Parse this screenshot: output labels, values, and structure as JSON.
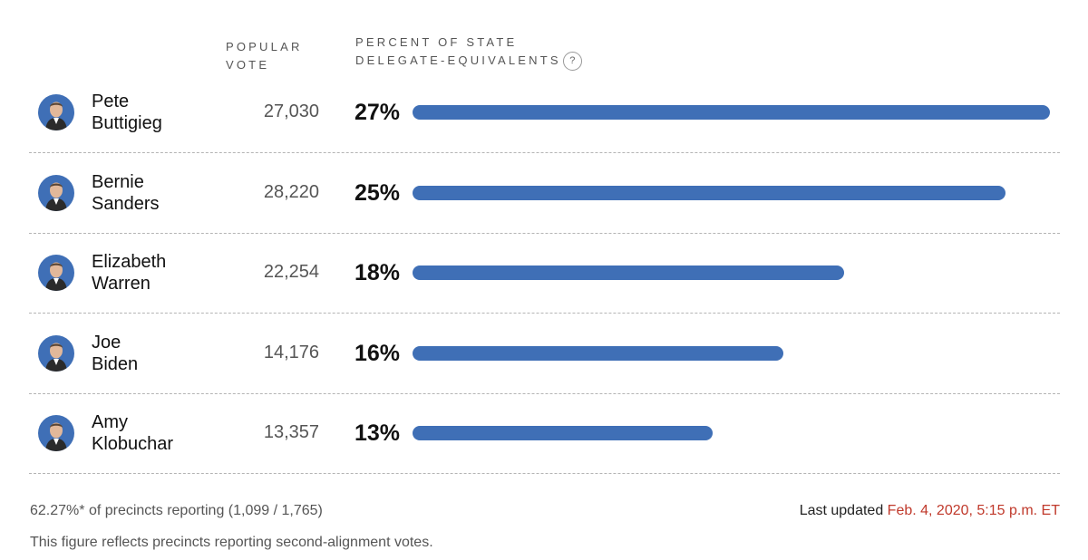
{
  "headers": {
    "popular_vote": "POPULAR VOTE",
    "percent_line1": "PERCENT OF STATE",
    "percent_line2": "DELEGATE-EQUIVALENTS",
    "help_glyph": "?"
  },
  "colors": {
    "bar": "#3f6fb6",
    "timestamp": "#c0392b"
  },
  "chart_data": {
    "type": "bar",
    "orientation": "horizontal",
    "categories": [
      "Pete Buttigieg",
      "Bernie Sanders",
      "Elizabeth Warren",
      "Joe Biden",
      "Amy Klobuchar"
    ],
    "xmax": 27,
    "rows": [
      {
        "first": "Pete",
        "last": "Buttigieg",
        "avatar_icon": "candidate-portrait-icon",
        "votes": "27,030",
        "pct_label": "27%",
        "value": 27
      },
      {
        "first": "Bernie",
        "last": "Sanders",
        "avatar_icon": "candidate-portrait-icon",
        "votes": "28,220",
        "pct_label": "25%",
        "value": 25.1
      },
      {
        "first": "Elizabeth",
        "last": "Warren",
        "avatar_icon": "candidate-portrait-icon",
        "votes": "22,254",
        "pct_label": "18%",
        "value": 18.3
      },
      {
        "first": "Joe",
        "last": "Biden",
        "avatar_icon": "candidate-portrait-icon",
        "votes": "14,176",
        "pct_label": "16%",
        "value": 15.7
      },
      {
        "first": "Amy",
        "last": "Klobuchar",
        "avatar_icon": "candidate-portrait-icon",
        "votes": "13,357",
        "pct_label": "13%",
        "value": 12.7
      }
    ]
  },
  "footer": {
    "precincts": "62.27%* of precincts reporting (1,099 / 1,765)",
    "note": "This figure reflects precincts reporting second-alignment votes.",
    "updated_label": "Last updated",
    "updated_time": "Feb. 4, 2020, 5:15 p.m. ET"
  }
}
